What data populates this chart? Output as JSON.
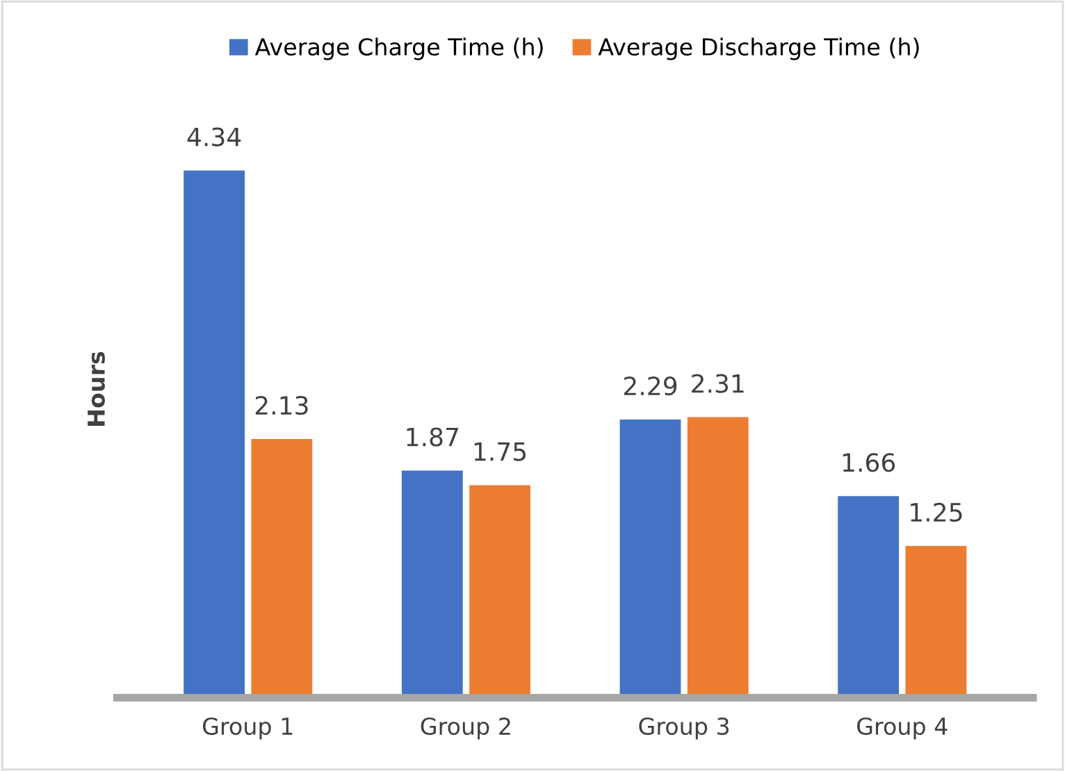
{
  "chart_data": {
    "type": "bar",
    "ylabel": "Hours",
    "categories": [
      "Group 1",
      "Group 2",
      "Group 3",
      "Group 4"
    ],
    "series": [
      {
        "name": "Average Charge Time (h)",
        "color": "#4472c4",
        "values": [
          4.34,
          1.87,
          2.29,
          1.66
        ]
      },
      {
        "name": "Average Discharge Time (h)",
        "color": "#ed7d31",
        "values": [
          2.13,
          1.75,
          2.31,
          1.25
        ]
      }
    ],
    "data_labels": true,
    "legend": "top",
    "grid": false,
    "tick_labels": "x"
  }
}
